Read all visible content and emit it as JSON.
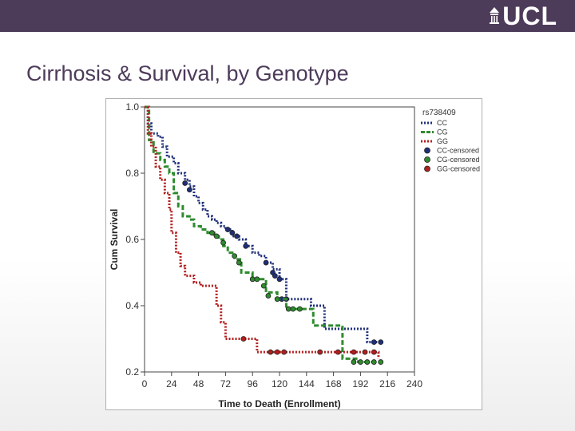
{
  "slide": {
    "title": "Cirrhosis & Survival, by Genotype",
    "logo_text": "UCL",
    "header_color": "#4d3b5a",
    "title_color": "#4d3b5a"
  },
  "chart_data": {
    "type": "line",
    "subtype": "kaplan-meier-step",
    "title": "",
    "xlabel": "Time to Death (Enrollment)",
    "ylabel": "Cum Survival",
    "xlim": [
      0,
      240
    ],
    "ylim": [
      0.2,
      1.0
    ],
    "xticks": [
      0,
      24,
      48,
      72,
      96,
      120,
      144,
      168,
      192,
      216,
      240
    ],
    "xtick_labels": [
      "0",
      "24",
      "48",
      "72",
      "96",
      "120",
      "144",
      "168",
      "192",
      "216",
      "240"
    ],
    "yticks": [
      0.2,
      0.4,
      0.6,
      0.8,
      1.0
    ],
    "ytick_labels": [
      "0.2",
      "0.4",
      "0.6",
      "0.8",
      "1.0"
    ],
    "grid": false,
    "legend": {
      "title": "rs738409",
      "placement": "top-right-outside",
      "entries": [
        "CC",
        "CG",
        "GG",
        "CC-censored",
        "CG-censored",
        "GG-censored"
      ]
    },
    "series": [
      {
        "name": "CC",
        "color": "#1f2f7a",
        "dash": "dotted",
        "steps": [
          [
            0,
            1.0
          ],
          [
            3,
            0.95
          ],
          [
            6,
            0.92
          ],
          [
            12,
            0.91
          ],
          [
            16,
            0.88
          ],
          [
            20,
            0.85
          ],
          [
            26,
            0.83
          ],
          [
            30,
            0.8
          ],
          [
            36,
            0.78
          ],
          [
            40,
            0.76
          ],
          [
            44,
            0.73
          ],
          [
            48,
            0.71
          ],
          [
            52,
            0.69
          ],
          [
            56,
            0.67
          ],
          [
            60,
            0.66
          ],
          [
            64,
            0.65
          ],
          [
            68,
            0.64
          ],
          [
            72,
            0.63
          ],
          [
            78,
            0.61
          ],
          [
            84,
            0.6
          ],
          [
            90,
            0.58
          ],
          [
            96,
            0.56
          ],
          [
            102,
            0.55
          ],
          [
            108,
            0.53
          ],
          [
            114,
            0.51
          ],
          [
            120,
            0.48
          ],
          [
            126,
            0.42
          ],
          [
            140,
            0.42
          ],
          [
            148,
            0.4
          ],
          [
            160,
            0.33
          ],
          [
            198,
            0.29
          ],
          [
            210,
            0.29
          ]
        ],
        "censored": [
          [
            36,
            0.77
          ],
          [
            40,
            0.75
          ],
          [
            74,
            0.63
          ],
          [
            78,
            0.62
          ],
          [
            82,
            0.61
          ],
          [
            90,
            0.58
          ],
          [
            108,
            0.53
          ],
          [
            114,
            0.5
          ],
          [
            116,
            0.49
          ],
          [
            120,
            0.48
          ],
          [
            122,
            0.42
          ],
          [
            126,
            0.42
          ],
          [
            204,
            0.29
          ],
          [
            210,
            0.29
          ]
        ]
      },
      {
        "name": "CG",
        "color": "#2e8b2e",
        "dash": "dashed",
        "steps": [
          [
            0,
            1.0
          ],
          [
            4,
            0.9
          ],
          [
            8,
            0.86
          ],
          [
            14,
            0.84
          ],
          [
            18,
            0.82
          ],
          [
            22,
            0.8
          ],
          [
            26,
            0.74
          ],
          [
            30,
            0.7
          ],
          [
            34,
            0.67
          ],
          [
            40,
            0.66
          ],
          [
            44,
            0.64
          ],
          [
            50,
            0.63
          ],
          [
            56,
            0.62
          ],
          [
            62,
            0.61
          ],
          [
            66,
            0.6
          ],
          [
            70,
            0.58
          ],
          [
            74,
            0.56
          ],
          [
            80,
            0.54
          ],
          [
            86,
            0.5
          ],
          [
            96,
            0.48
          ],
          [
            108,
            0.44
          ],
          [
            118,
            0.42
          ],
          [
            126,
            0.39
          ],
          [
            150,
            0.34
          ],
          [
            176,
            0.24
          ],
          [
            180,
            0.24
          ],
          [
            190,
            0.23
          ],
          [
            210,
            0.23
          ]
        ],
        "censored": [
          [
            60,
            0.62
          ],
          [
            64,
            0.61
          ],
          [
            70,
            0.59
          ],
          [
            80,
            0.55
          ],
          [
            84,
            0.53
          ],
          [
            96,
            0.48
          ],
          [
            100,
            0.48
          ],
          [
            106,
            0.46
          ],
          [
            110,
            0.43
          ],
          [
            118,
            0.42
          ],
          [
            128,
            0.39
          ],
          [
            132,
            0.39
          ],
          [
            138,
            0.39
          ],
          [
            186,
            0.23
          ],
          [
            192,
            0.23
          ],
          [
            198,
            0.23
          ],
          [
            204,
            0.23
          ],
          [
            210,
            0.23
          ]
        ]
      },
      {
        "name": "GG",
        "color": "#b21f1f",
        "dash": "dotted",
        "steps": [
          [
            0,
            1.0
          ],
          [
            3,
            0.92
          ],
          [
            6,
            0.88
          ],
          [
            10,
            0.82
          ],
          [
            14,
            0.78
          ],
          [
            18,
            0.74
          ],
          [
            22,
            0.69
          ],
          [
            24,
            0.62
          ],
          [
            28,
            0.56
          ],
          [
            32,
            0.52
          ],
          [
            36,
            0.49
          ],
          [
            44,
            0.47
          ],
          [
            50,
            0.46
          ],
          [
            64,
            0.4
          ],
          [
            68,
            0.35
          ],
          [
            72,
            0.3
          ],
          [
            80,
            0.3
          ],
          [
            100,
            0.26
          ],
          [
            150,
            0.26
          ],
          [
            168,
            0.26
          ],
          [
            208,
            0.24
          ]
        ],
        "censored": [
          [
            88,
            0.3
          ],
          [
            112,
            0.26
          ],
          [
            118,
            0.26
          ],
          [
            124,
            0.26
          ],
          [
            156,
            0.26
          ],
          [
            172,
            0.26
          ],
          [
            186,
            0.26
          ],
          [
            196,
            0.26
          ],
          [
            204,
            0.26
          ]
        ]
      }
    ]
  }
}
